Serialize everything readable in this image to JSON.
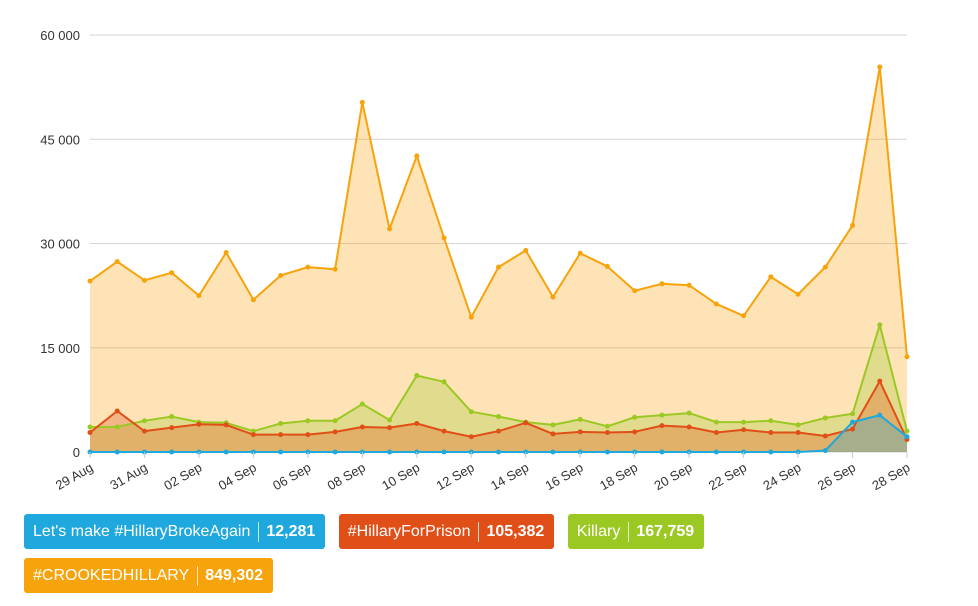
{
  "chart_data": {
    "type": "area",
    "x": [
      "29 Aug",
      "30 Aug",
      "31 Aug",
      "01 Sep",
      "02 Sep",
      "03 Sep",
      "04 Sep",
      "05 Sep",
      "06 Sep",
      "07 Sep",
      "08 Sep",
      "09 Sep",
      "10 Sep",
      "11 Sep",
      "12 Sep",
      "13 Sep",
      "14 Sep",
      "15 Sep",
      "16 Sep",
      "17 Sep",
      "18 Sep",
      "19 Sep",
      "20 Sep",
      "21 Sep",
      "22 Sep",
      "23 Sep",
      "24 Sep",
      "25 Sep",
      "26 Sep",
      "27 Sep",
      "28 Sep"
    ],
    "x_tick_labels": [
      "29 Aug",
      "31 Aug",
      "02 Sep",
      "04 Sep",
      "06 Sep",
      "08 Sep",
      "10 Sep",
      "12 Sep",
      "14 Sep",
      "16 Sep",
      "18 Sep",
      "20 Sep",
      "22 Sep",
      "24 Sep",
      "26 Sep",
      "28 Sep"
    ],
    "ylim": [
      0,
      60000
    ],
    "y_ticks": [
      0,
      15000,
      30000,
      45000,
      60000
    ],
    "y_tick_labels": [
      "0",
      "15 000",
      "30 000",
      "45 000",
      "60 000"
    ],
    "grid": true,
    "legend_position": "bottom-left",
    "series": [
      {
        "name": "#CROOKEDHILLARY",
        "total": "849,302",
        "color": "#f7a30c",
        "values": [
          24600,
          27400,
          24700,
          25800,
          22500,
          28700,
          21900,
          25400,
          26600,
          26300,
          50300,
          32100,
          42600,
          30800,
          19400,
          26600,
          29000,
          22300,
          28600,
          26700,
          23200,
          24200,
          24000,
          21300,
          19600,
          25200,
          22700,
          26600,
          32600,
          55400,
          13700
        ]
      },
      {
        "name": "Killary",
        "total": "167,759",
        "color": "#9cc823",
        "values": [
          3600,
          3600,
          4500,
          5100,
          4300,
          4200,
          3000,
          4100,
          4500,
          4500,
          6900,
          4600,
          11000,
          10100,
          5800,
          5100,
          4300,
          3900,
          4700,
          3700,
          5000,
          5300,
          5600,
          4300,
          4300,
          4500,
          3900,
          4900,
          5500,
          18300,
          3000
        ]
      },
      {
        "name": "#HillaryForPrison",
        "total": "105,382",
        "color": "#e04f18",
        "values": [
          2800,
          5900,
          3000,
          3500,
          4000,
          3900,
          2500,
          2500,
          2500,
          2900,
          3600,
          3500,
          4100,
          3000,
          2200,
          3000,
          4200,
          2600,
          2900,
          2800,
          2900,
          3800,
          3600,
          2800,
          3200,
          2800,
          2800,
          2300,
          3300,
          10200,
          1800
        ]
      },
      {
        "name": "Let's make #HillaryBrokeAgain",
        "total": "12,281",
        "color": "#1fa8dd",
        "values": [
          0,
          0,
          0,
          0,
          0,
          0,
          0,
          0,
          0,
          0,
          0,
          0,
          0,
          0,
          0,
          0,
          0,
          0,
          0,
          0,
          0,
          0,
          0,
          0,
          0,
          0,
          0,
          200,
          4300,
          5300,
          2200
        ]
      }
    ]
  },
  "legend": [
    {
      "label": "Let's make #HillaryBrokeAgain",
      "total": "12,281",
      "color": "#1fa8dd"
    },
    {
      "label": "#HillaryForPrison",
      "total": "105,382",
      "color": "#e04f18"
    },
    {
      "label": "Killary",
      "total": "167,759",
      "color": "#9cc823"
    },
    {
      "label": "#CROOKEDHILLARY",
      "total": "849,302",
      "color": "#f7a30c"
    }
  ]
}
